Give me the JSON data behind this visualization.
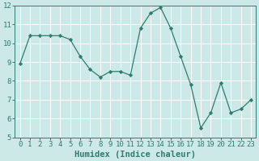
{
  "x": [
    0,
    1,
    2,
    3,
    4,
    5,
    6,
    7,
    8,
    9,
    10,
    11,
    12,
    13,
    14,
    15,
    16,
    17,
    18,
    19,
    20,
    21,
    22,
    23
  ],
  "y": [
    8.9,
    10.4,
    10.4,
    10.4,
    10.4,
    10.2,
    9.3,
    8.6,
    8.2,
    8.5,
    8.5,
    8.3,
    10.8,
    11.6,
    11.9,
    10.8,
    9.3,
    7.8,
    5.5,
    6.3,
    7.9,
    6.3,
    6.5,
    7.0
  ],
  "line_color": "#2e7d6e",
  "marker": "D",
  "marker_size": 2.2,
  "bg_color": "#cce9e7",
  "grid_color": "#ffffff",
  "xlabel": "Humidex (Indice chaleur)",
  "ylim": [
    5,
    12
  ],
  "xlim_min": -0.5,
  "xlim_max": 23.5,
  "yticks": [
    5,
    6,
    7,
    8,
    9,
    10,
    11,
    12
  ],
  "xticks": [
    0,
    1,
    2,
    3,
    4,
    5,
    6,
    7,
    8,
    9,
    10,
    11,
    12,
    13,
    14,
    15,
    16,
    17,
    18,
    19,
    20,
    21,
    22,
    23
  ],
  "label_color": "#2e7d6e",
  "tick_color": "#2e7d6e",
  "xlabel_fontsize": 7.5,
  "tick_fontsize": 6.5
}
